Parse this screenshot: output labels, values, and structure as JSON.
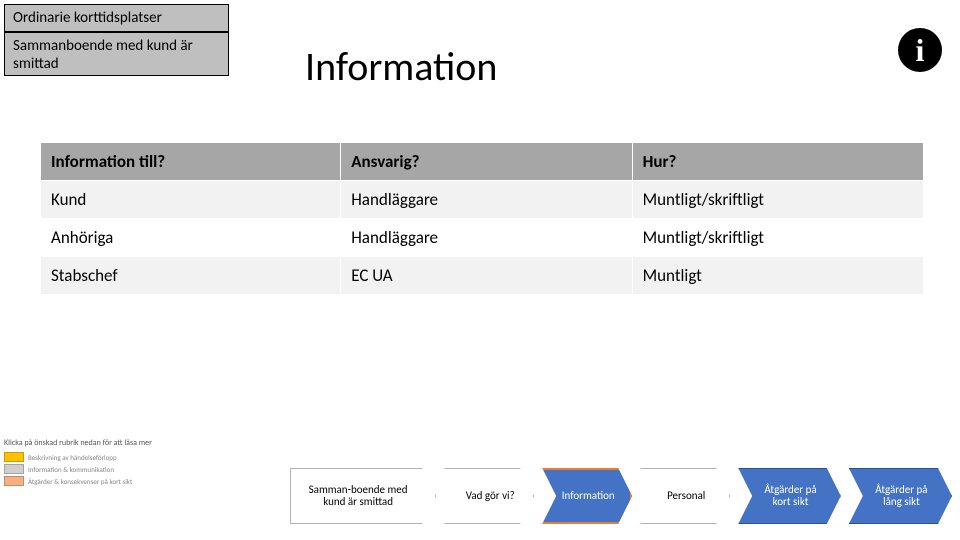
{
  "header": {
    "box1": "Ordinarie korttidsplatser",
    "box2": "Sammanboende med kund är smittad",
    "title": "Information",
    "info_icon_glyph": "i"
  },
  "table": {
    "columns": [
      "Information till?",
      "Ansvarig?",
      "Hur?"
    ],
    "rows": [
      [
        "Kund",
        "Handläggare",
        "Muntligt/skriftligt"
      ],
      [
        "Anhöriga",
        "Handläggare",
        "Muntligt/skriftligt"
      ],
      [
        "Stabschef",
        "EC UA",
        "Muntligt"
      ]
    ],
    "header_bg": "#a6a6a6",
    "row_odd_bg": "#f2f2f2",
    "row_even_bg": "#ffffff",
    "font_size": 17
  },
  "legend": {
    "title": "Klicka på önskad rubrik nedan för att läsa mer",
    "items": [
      {
        "color": "#ffc000",
        "text": "Beskrivning av händelseförlopp"
      },
      {
        "color": "#d0cece",
        "text": "Information & kommunikation"
      },
      {
        "color": "#f4b183",
        "text": "Åtgärder & konsekvenser på kort sikt"
      }
    ]
  },
  "nav": {
    "items": [
      {
        "label": "Samman-boende med kund är smittad",
        "type": "first",
        "style": "white"
      },
      {
        "label": "Vad gör vi?",
        "type": "mid",
        "style": "white"
      },
      {
        "label": "Information",
        "type": "mid",
        "style": "blue",
        "active": true
      },
      {
        "label": "Personal",
        "type": "mid",
        "style": "white"
      },
      {
        "label": "Åtgärder på kort sikt",
        "type": "mid",
        "style": "blue"
      },
      {
        "label": "Åtgärder på lång sikt",
        "type": "mid",
        "style": "blue"
      }
    ]
  },
  "colors": {
    "box_bg": "#bfbfbf",
    "chev_blue": "#4472c4",
    "chev_blue_border": "#2f528f",
    "chev_active_border": "#ed7d31"
  }
}
